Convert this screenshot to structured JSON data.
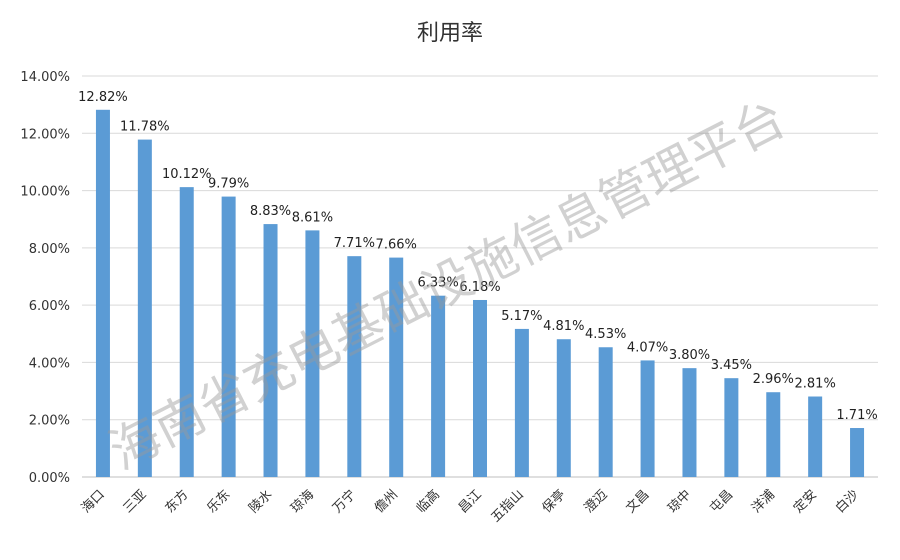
{
  "chart_data": {
    "type": "bar",
    "title": "利用率",
    "xlabel": "",
    "ylabel": "",
    "ylim": [
      0,
      14
    ],
    "y_ticks": [
      "0.00%",
      "2.00%",
      "4.00%",
      "6.00%",
      "8.00%",
      "10.00%",
      "12.00%",
      "14.00%"
    ],
    "grid": true,
    "bar_color": "#5b9bd5",
    "categories": [
      "海口",
      "三亚",
      "东方",
      "乐东",
      "陵水",
      "琼海",
      "万宁",
      "儋州",
      "临高",
      "昌江",
      "五指山",
      "保亭",
      "澄迈",
      "文昌",
      "琼中",
      "屯昌",
      "洋浦",
      "定安",
      "白沙"
    ],
    "values": [
      12.82,
      11.78,
      10.12,
      9.79,
      8.83,
      8.61,
      7.71,
      7.66,
      6.33,
      6.18,
      5.17,
      4.81,
      4.53,
      4.07,
      3.8,
      3.45,
      2.96,
      2.81,
      1.71
    ],
    "data_labels": [
      "12.82%",
      "11.78%",
      "10.12%",
      "9.79%",
      "8.83%",
      "8.61%",
      "7.71%",
      "7.66%",
      "6.33%",
      "6.18%",
      "5.17%",
      "4.81%",
      "4.53%",
      "4.07%",
      "3.80%",
      "3.45%",
      "2.96%",
      "2.81%",
      "1.71%"
    ]
  },
  "watermark": "海南省充电基础设施信息管理平台"
}
